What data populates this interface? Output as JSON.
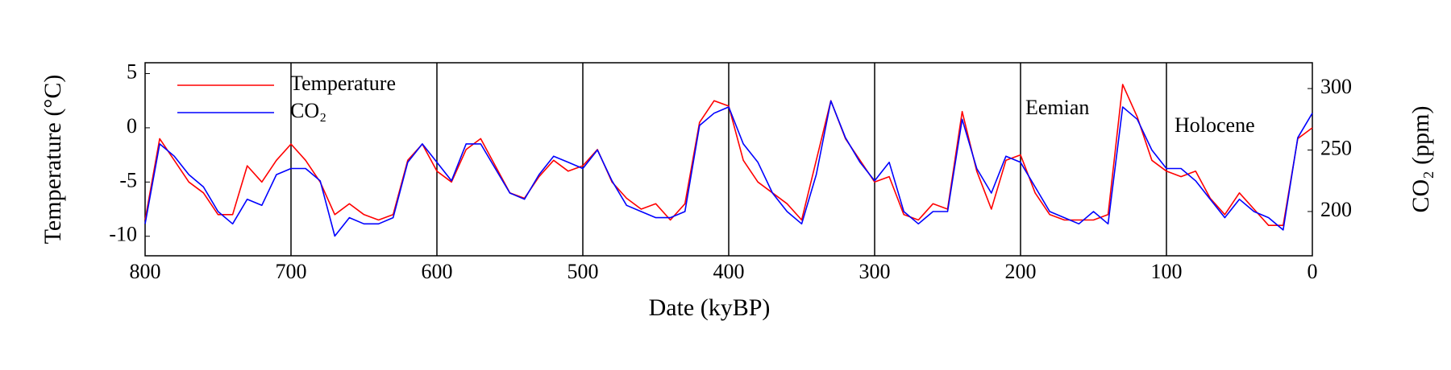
{
  "chart_data": {
    "type": "line",
    "x_label": "Date (kyBP)",
    "y_label": "Temperature (°C)",
    "y2_label": "CO₂ (ppm)",
    "x": [
      800,
      790,
      780,
      770,
      760,
      750,
      740,
      730,
      720,
      710,
      700,
      690,
      680,
      670,
      660,
      650,
      640,
      630,
      620,
      610,
      600,
      590,
      580,
      570,
      560,
      550,
      540,
      530,
      520,
      510,
      500,
      490,
      480,
      470,
      460,
      450,
      440,
      430,
      420,
      410,
      400,
      390,
      380,
      370,
      360,
      350,
      340,
      330,
      320,
      310,
      300,
      290,
      280,
      270,
      260,
      250,
      240,
      230,
      220,
      210,
      200,
      190,
      180,
      170,
      160,
      150,
      140,
      130,
      120,
      110,
      100,
      90,
      80,
      70,
      60,
      50,
      40,
      30,
      20,
      10,
      0
    ],
    "series": [
      {
        "name": "Temperature",
        "color": "#ff0000",
        "values": [
          -8.5,
          -1,
          -3,
          -5,
          -6,
          -8,
          -8,
          -3.5,
          -5,
          -3,
          -1.5,
          -3,
          -5,
          -8,
          -7,
          -8,
          -8.5,
          -8,
          -3,
          -1.5,
          -4,
          -5,
          -2,
          -1,
          -3.5,
          -6,
          -6.5,
          -4.5,
          -3,
          -4,
          -3.5,
          -2,
          -5,
          -6.5,
          -7.5,
          -7,
          -8.5,
          -7,
          0.5,
          2.5,
          2,
          -3,
          -5,
          -6,
          -7,
          -8.5,
          -3,
          2.5,
          -1,
          -3,
          -5,
          -4.5,
          -8,
          -8.5,
          -7,
          -7.5,
          1.5,
          -4,
          -7.5,
          -3,
          -2.5,
          -6,
          -8,
          -8.5,
          -8.5,
          -8.5,
          -8,
          4,
          1,
          -3,
          -4,
          -4.5,
          -4,
          -6.5,
          -8,
          -6,
          -7.5,
          -9,
          -9,
          -1,
          0
        ]
      },
      {
        "name": "CO₂",
        "color": "#0000ff",
        "axis": "y2",
        "values": [
          190,
          255,
          245,
          230,
          220,
          200,
          190,
          210,
          205,
          230,
          235,
          235,
          225,
          180,
          195,
          190,
          190,
          195,
          240,
          255,
          240,
          225,
          255,
          255,
          235,
          215,
          210,
          230,
          245,
          240,
          235,
          250,
          225,
          205,
          200,
          195,
          195,
          200,
          270,
          280,
          285,
          255,
          240,
          215,
          200,
          190,
          230,
          290,
          260,
          240,
          225,
          240,
          200,
          190,
          200,
          200,
          275,
          235,
          215,
          245,
          240,
          220,
          200,
          195,
          190,
          200,
          190,
          285,
          275,
          250,
          235,
          235,
          225,
          210,
          195,
          210,
          200,
          195,
          185,
          260,
          280
        ]
      }
    ],
    "xlim": [
      800,
      0
    ],
    "xticks": [
      800,
      700,
      600,
      500,
      400,
      300,
      200,
      100,
      0
    ],
    "ylim": [
      -11.8,
      6
    ],
    "yticks": [
      5,
      0,
      -5,
      -10
    ],
    "y2lim": [
      164,
      321
    ],
    "y2ticks": [
      300,
      250,
      200
    ],
    "x_grid": true,
    "legend": "upper left",
    "annotations": [
      "Eemian",
      "Holocene"
    ]
  }
}
